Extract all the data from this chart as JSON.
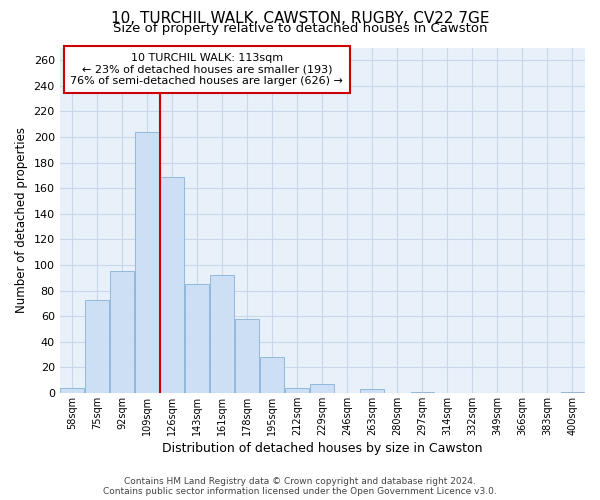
{
  "title1": "10, TURCHIL WALK, CAWSTON, RUGBY, CV22 7GE",
  "title2": "Size of property relative to detached houses in Cawston",
  "xlabel": "Distribution of detached houses by size in Cawston",
  "ylabel": "Number of detached properties",
  "footer1": "Contains HM Land Registry data © Crown copyright and database right 2024.",
  "footer2": "Contains public sector information licensed under the Open Government Licence v3.0.",
  "annotation_line1": "10 TURCHIL WALK: 113sqm",
  "annotation_line2": "← 23% of detached houses are smaller (193)",
  "annotation_line3": "76% of semi-detached houses are larger (626) →",
  "bar_labels": [
    "58sqm",
    "75sqm",
    "92sqm",
    "109sqm",
    "126sqm",
    "143sqm",
    "161sqm",
    "178sqm",
    "195sqm",
    "212sqm",
    "229sqm",
    "246sqm",
    "263sqm",
    "280sqm",
    "297sqm",
    "314sqm",
    "332sqm",
    "349sqm",
    "366sqm",
    "383sqm",
    "400sqm"
  ],
  "bar_values": [
    4,
    73,
    95,
    204,
    169,
    85,
    92,
    58,
    28,
    4,
    7,
    0,
    3,
    0,
    1,
    0,
    0,
    0,
    0,
    0,
    1
  ],
  "bar_color": "#ccdff5",
  "bar_edge_color": "#91b8dc",
  "vline_color": "#cc0000",
  "vline_x_index": 3,
  "annotation_box_color": "#ffffff",
  "annotation_box_edge": "#cc0000",
  "grid_color": "#c8d8e8",
  "background_color": "#e8f0fa",
  "ylim": [
    0,
    270
  ],
  "yticks": [
    0,
    20,
    40,
    60,
    80,
    100,
    120,
    140,
    160,
    180,
    200,
    220,
    240,
    260
  ]
}
